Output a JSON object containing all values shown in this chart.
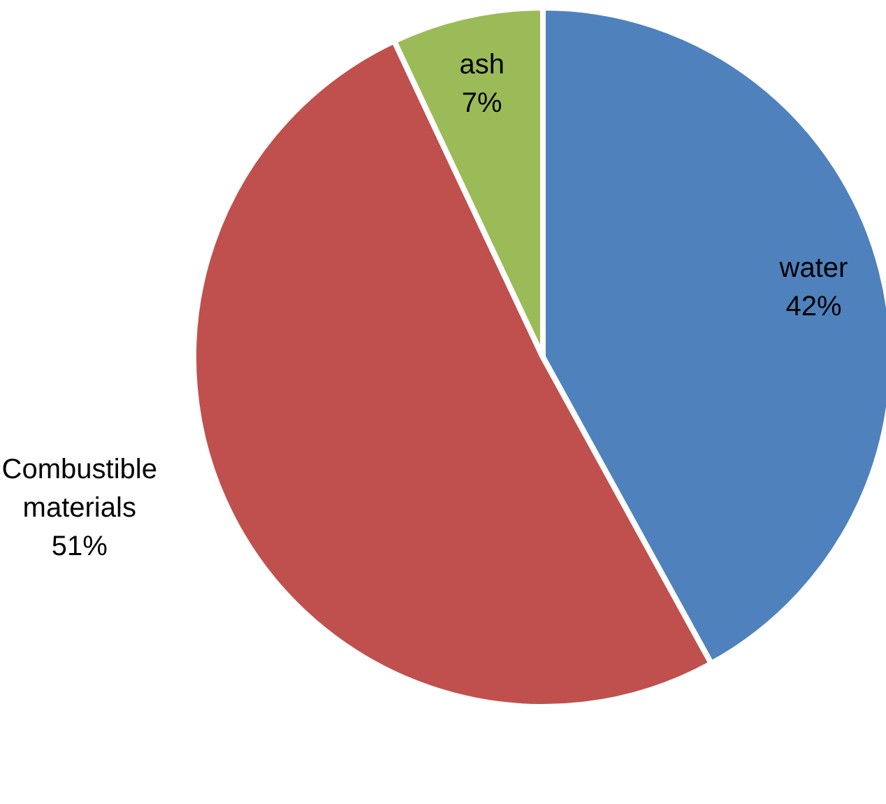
{
  "chart_data": {
    "type": "pie",
    "categories": [
      "water",
      "Combustible materials",
      "ash"
    ],
    "values": [
      42,
      51,
      7
    ],
    "colors": [
      "#4f81bd",
      "#c0504d",
      "#9bbb59"
    ],
    "value_labels": [
      "42%",
      "51%",
      "7%"
    ]
  }
}
